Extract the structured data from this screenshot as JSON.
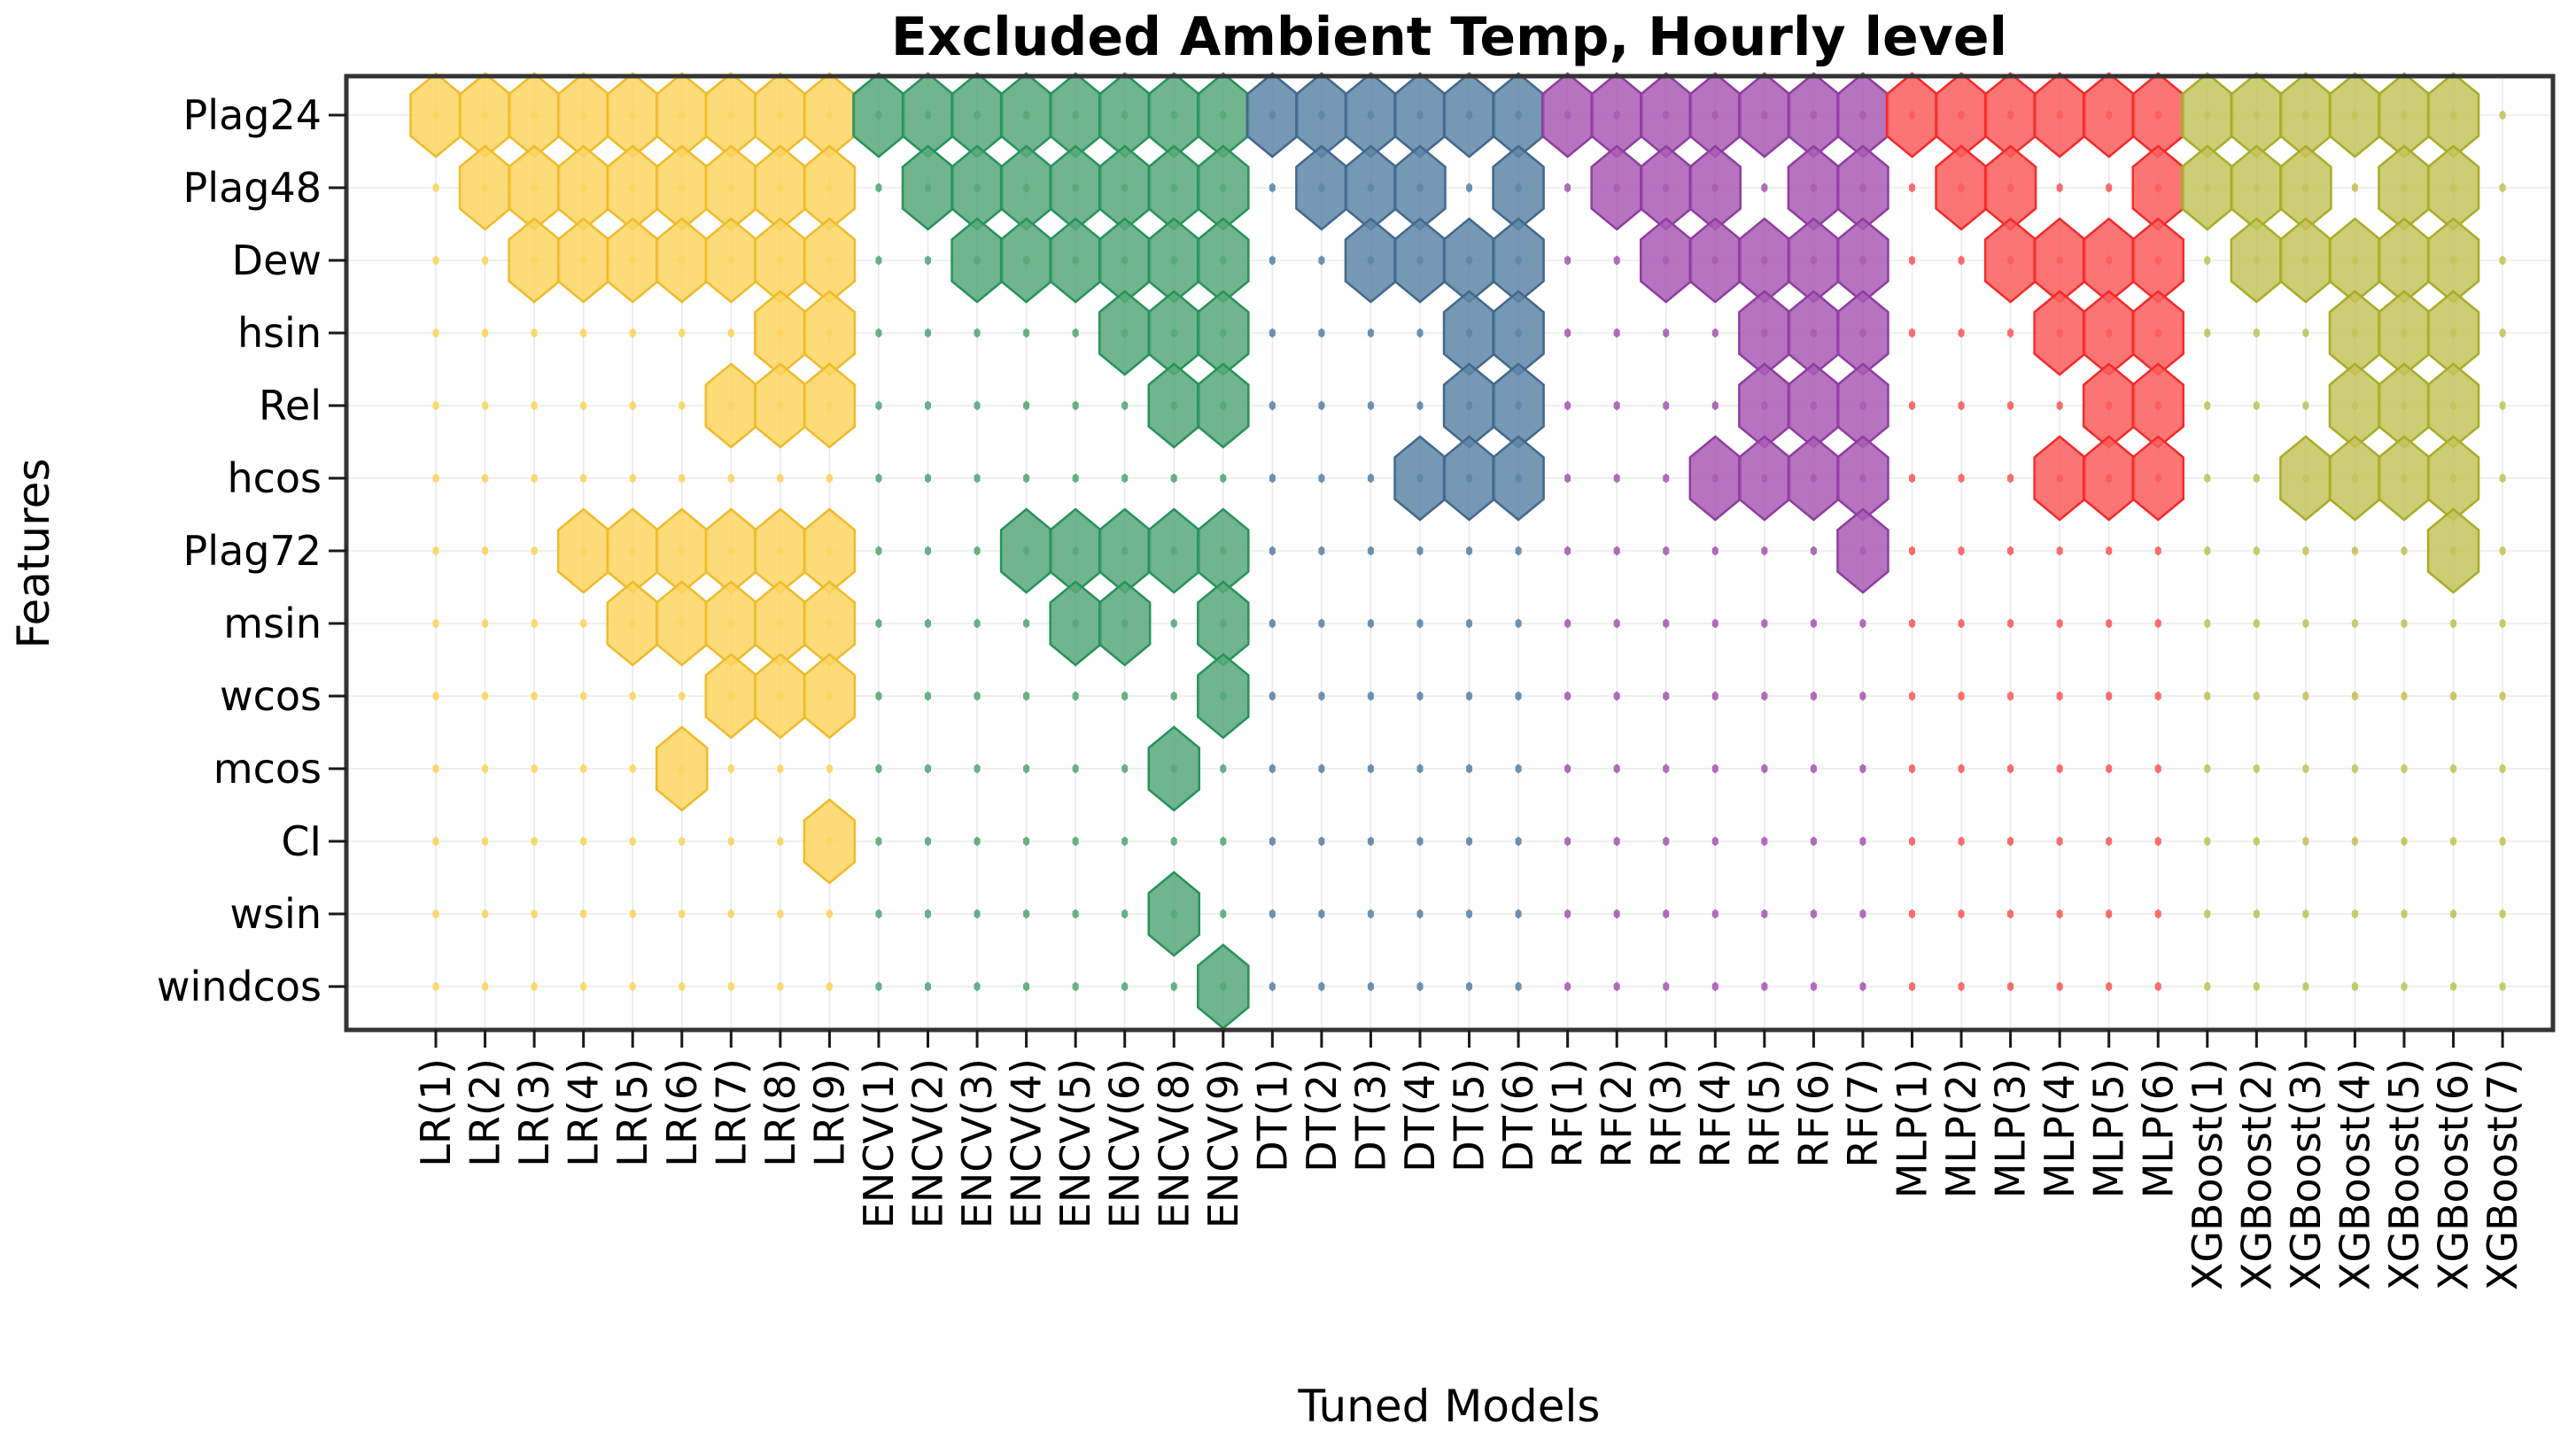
{
  "title": "Excluded Ambient Temp, Hourly level",
  "chart_data": {
    "type": "hex_presence_matrix",
    "title": "Excluded Ambient Temp, Hourly level",
    "xlabel": "Tuned Models",
    "ylabel": "Features",
    "grid": "on",
    "features": [
      "Plag24",
      "Plag48",
      "Dew",
      "hsin",
      "Rel",
      "hcos",
      "Plag72",
      "msin",
      "wcos",
      "mcos",
      "CI",
      "wsin",
      "windcos"
    ],
    "model_groups": [
      {
        "name": "LR",
        "color": "#FCD560",
        "edge_color": "#F0BB2A",
        "models": [
          "LR(1)",
          "LR(2)",
          "LR(3)",
          "LR(4)",
          "LR(5)",
          "LR(6)",
          "LR(7)",
          "LR(8)",
          "LR(9)"
        ]
      },
      {
        "name": "ENCV",
        "color": "#57A87A",
        "edge_color": "#27935C",
        "models": [
          "ENCV(1)",
          "ENCV(2)",
          "ENCV(3)",
          "ENCV(4)",
          "ENCV(5)",
          "ENCV(6)",
          "ENCV(8)",
          "ENCV(9)"
        ]
      },
      {
        "name": "DT",
        "color": "#5D86A8",
        "edge_color": "#44688C",
        "models": [
          "DT(1)",
          "DT(2)",
          "DT(3)",
          "DT(4)",
          "DT(5)",
          "DT(6)"
        ]
      },
      {
        "name": "RF",
        "color": "#A95CB4",
        "edge_color": "#8F3DA0",
        "models": [
          "RF(1)",
          "RF(2)",
          "RF(3)",
          "RF(4)",
          "RF(5)",
          "RF(6)",
          "RF(7)"
        ]
      },
      {
        "name": "MLP",
        "color": "#FB5D5D",
        "edge_color": "#F52A2A",
        "models": [
          "MLP(1)",
          "MLP(2)",
          "MLP(3)",
          "MLP(4)",
          "MLP(5)",
          "MLP(6)"
        ]
      },
      {
        "name": "XGBoost",
        "color": "#C3C45C",
        "edge_color": "#A9AC28",
        "models": [
          "XGBoost(1)",
          "XGBoost(2)",
          "XGBoost(3)",
          "XGBoost(4)",
          "XGBoost(5)",
          "XGBoost(6)",
          "XGBoost(7)"
        ]
      }
    ],
    "feature_models": {
      "Plag24": [
        "LR(1)",
        "LR(2)",
        "LR(3)",
        "LR(4)",
        "LR(5)",
        "LR(6)",
        "LR(7)",
        "LR(8)",
        "LR(9)",
        "ENCV(1)",
        "ENCV(2)",
        "ENCV(3)",
        "ENCV(4)",
        "ENCV(5)",
        "ENCV(6)",
        "ENCV(8)",
        "ENCV(9)",
        "DT(1)",
        "DT(2)",
        "DT(3)",
        "DT(4)",
        "DT(5)",
        "DT(6)",
        "RF(1)",
        "RF(2)",
        "RF(3)",
        "RF(4)",
        "RF(5)",
        "RF(6)",
        "RF(7)",
        "MLP(1)",
        "MLP(2)",
        "MLP(3)",
        "MLP(4)",
        "MLP(5)",
        "MLP(6)",
        "XGBoost(1)",
        "XGBoost(2)",
        "XGBoost(3)",
        "XGBoost(4)",
        "XGBoost(5)",
        "XGBoost(6)"
      ],
      "Plag48": [
        "LR(2)",
        "LR(3)",
        "LR(4)",
        "LR(5)",
        "LR(6)",
        "LR(7)",
        "LR(8)",
        "LR(9)",
        "ENCV(2)",
        "ENCV(3)",
        "ENCV(4)",
        "ENCV(5)",
        "ENCV(6)",
        "ENCV(8)",
        "ENCV(9)",
        "DT(2)",
        "DT(3)",
        "DT(4)",
        "DT(6)",
        "RF(2)",
        "RF(3)",
        "RF(4)",
        "RF(6)",
        "RF(7)",
        "MLP(2)",
        "MLP(3)",
        "MLP(6)",
        "XGBoost(1)",
        "XGBoost(2)",
        "XGBoost(3)",
        "XGBoost(5)",
        "XGBoost(6)"
      ],
      "Dew": [
        "LR(3)",
        "LR(4)",
        "LR(5)",
        "LR(6)",
        "LR(7)",
        "LR(8)",
        "LR(9)",
        "ENCV(3)",
        "ENCV(4)",
        "ENCV(5)",
        "ENCV(6)",
        "ENCV(8)",
        "ENCV(9)",
        "DT(3)",
        "DT(4)",
        "DT(5)",
        "DT(6)",
        "RF(3)",
        "RF(4)",
        "RF(5)",
        "RF(6)",
        "RF(7)",
        "MLP(3)",
        "MLP(4)",
        "MLP(5)",
        "MLP(6)",
        "XGBoost(2)",
        "XGBoost(3)",
        "XGBoost(4)",
        "XGBoost(5)",
        "XGBoost(6)"
      ],
      "hsin": [
        "LR(8)",
        "LR(9)",
        "ENCV(6)",
        "ENCV(8)",
        "ENCV(9)",
        "DT(5)",
        "DT(6)",
        "RF(5)",
        "RF(6)",
        "RF(7)",
        "MLP(4)",
        "MLP(5)",
        "MLP(6)",
        "XGBoost(4)",
        "XGBoost(5)",
        "XGBoost(6)"
      ],
      "Rel": [
        "LR(7)",
        "LR(8)",
        "LR(9)",
        "ENCV(8)",
        "ENCV(9)",
        "DT(5)",
        "DT(6)",
        "RF(5)",
        "RF(6)",
        "RF(7)",
        "MLP(5)",
        "MLP(6)",
        "XGBoost(4)",
        "XGBoost(5)",
        "XGBoost(6)"
      ],
      "hcos": [
        "DT(4)",
        "DT(5)",
        "DT(6)",
        "RF(4)",
        "RF(5)",
        "RF(6)",
        "RF(7)",
        "MLP(4)",
        "MLP(5)",
        "MLP(6)",
        "XGBoost(3)",
        "XGBoost(4)",
        "XGBoost(5)",
        "XGBoost(6)"
      ],
      "Plag72": [
        "LR(4)",
        "LR(5)",
        "LR(6)",
        "LR(7)",
        "LR(8)",
        "LR(9)",
        "ENCV(4)",
        "ENCV(5)",
        "ENCV(6)",
        "ENCV(8)",
        "ENCV(9)",
        "RF(7)",
        "XGBoost(6)"
      ],
      "msin": [
        "LR(5)",
        "LR(6)",
        "LR(7)",
        "LR(8)",
        "LR(9)",
        "ENCV(5)",
        "ENCV(6)",
        "ENCV(9)"
      ],
      "wcos": [
        "LR(7)",
        "LR(8)",
        "LR(9)",
        "ENCV(9)"
      ],
      "mcos": [
        "LR(6)",
        "ENCV(8)"
      ],
      "CI": [
        "LR(9)"
      ],
      "wsin": [
        "ENCV(8)"
      ],
      "windcos": [
        "ENCV(9)"
      ]
    }
  }
}
